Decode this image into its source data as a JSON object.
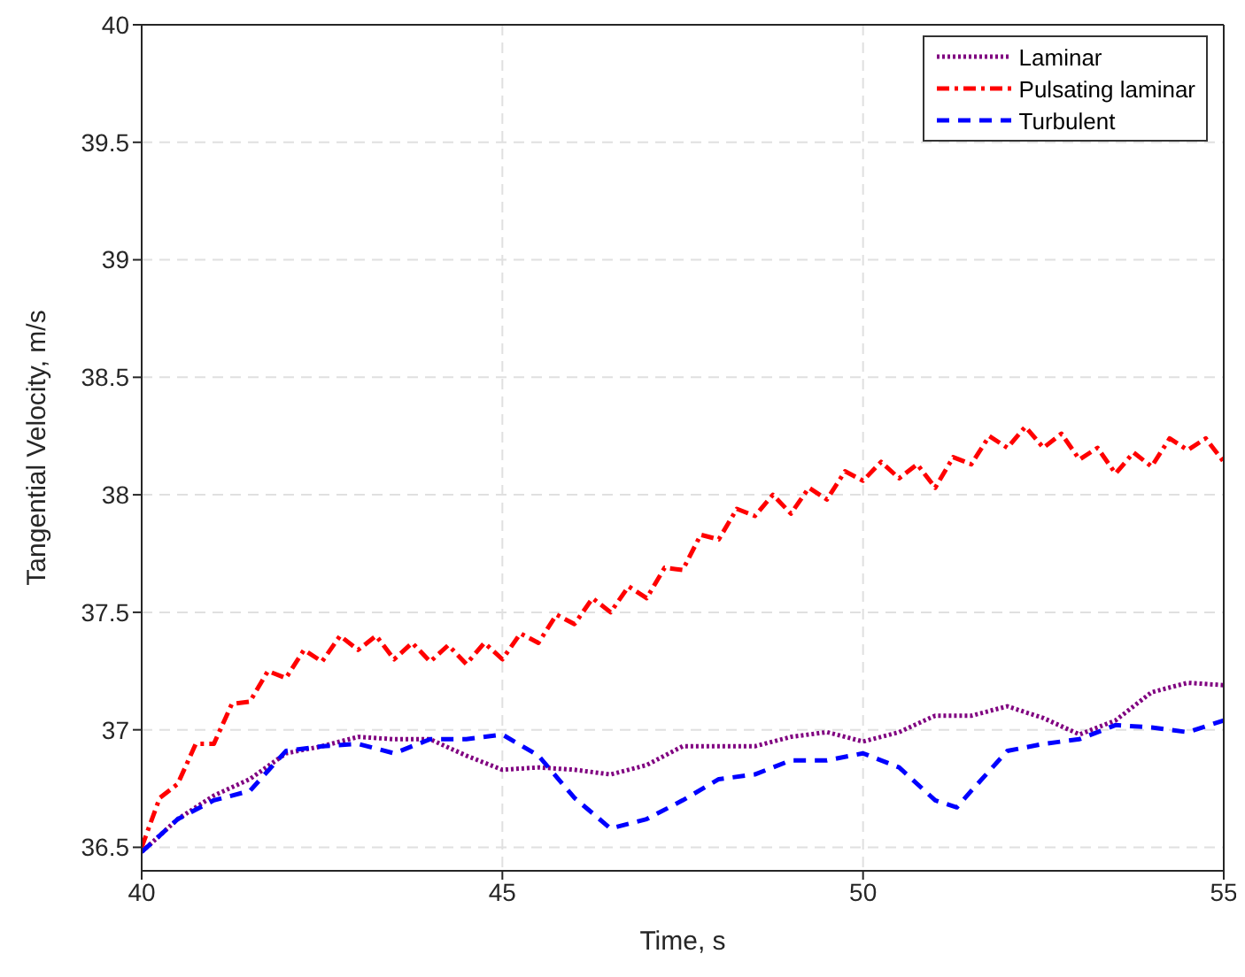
{
  "chart_data": {
    "type": "line",
    "xlabel": "Time, s",
    "ylabel": "Tangential Velocity, m/s",
    "xlim": [
      40,
      55
    ],
    "xticks": [
      40,
      45,
      50,
      55
    ],
    "ylim": [
      36.4,
      40
    ],
    "yticks": [
      36.5,
      37,
      37.5,
      38,
      38.5,
      39,
      39.5,
      40
    ],
    "grid": true,
    "legend": "top right",
    "marker": "none",
    "series": [
      {
        "name": "Laminar",
        "color": "#800080",
        "line_style": "dotted",
        "x": [
          40,
          40.5,
          41,
          41.5,
          42,
          42.5,
          43,
          43.5,
          44,
          44.5,
          45,
          45.5,
          46,
          46.5,
          47,
          47.5,
          48,
          48.5,
          49,
          49.5,
          50,
          50.5,
          51,
          51.5,
          52,
          52.5,
          53,
          53.5,
          54,
          54.5,
          55
        ],
        "values": [
          36.48,
          36.62,
          36.72,
          36.79,
          36.9,
          36.93,
          36.97,
          36.96,
          36.96,
          36.89,
          36.83,
          36.84,
          36.83,
          36.81,
          36.85,
          36.93,
          36.93,
          36.93,
          36.97,
          36.99,
          36.95,
          36.99,
          37.06,
          37.06,
          37.1,
          37.05,
          36.98,
          37.04,
          37.16,
          37.2,
          37.19
        ]
      },
      {
        "name": "Pulsating laminar",
        "color": "#ff0000",
        "line_style": "dashdot",
        "x": [
          40,
          40.25,
          40.5,
          40.75,
          41,
          41.25,
          41.5,
          41.75,
          42,
          42.25,
          42.5,
          42.75,
          43,
          43.25,
          43.5,
          43.75,
          44,
          44.25,
          44.5,
          44.75,
          45,
          45.25,
          45.5,
          45.75,
          46,
          46.25,
          46.5,
          46.75,
          47,
          47.25,
          47.5,
          47.75,
          48,
          48.25,
          48.5,
          48.75,
          49,
          49.25,
          49.5,
          49.75,
          50,
          50.25,
          50.5,
          50.75,
          51,
          51.25,
          51.5,
          51.75,
          52,
          52.25,
          52.5,
          52.75,
          53,
          53.25,
          53.5,
          53.75,
          54,
          54.25,
          54.5,
          54.75,
          55
        ],
        "values": [
          36.5,
          36.71,
          36.77,
          36.94,
          36.94,
          37.11,
          37.12,
          37.25,
          37.22,
          37.34,
          37.29,
          37.4,
          37.34,
          37.4,
          37.3,
          37.37,
          37.29,
          37.36,
          37.28,
          37.37,
          37.3,
          37.41,
          37.37,
          37.49,
          37.45,
          37.56,
          37.5,
          37.61,
          37.56,
          37.69,
          37.68,
          37.83,
          37.81,
          37.94,
          37.91,
          38,
          37.92,
          38.03,
          37.98,
          38.1,
          38.06,
          38.14,
          38.07,
          38.13,
          38.03,
          38.16,
          38.13,
          38.25,
          38.2,
          38.29,
          38.2,
          38.26,
          38.15,
          38.2,
          38.09,
          38.18,
          38.12,
          38.24,
          38.19,
          38.24,
          38.14
        ]
      },
      {
        "name": "Turbulent",
        "color": "#0000ff",
        "line_style": "dashed",
        "x": [
          40,
          40.5,
          41,
          41.5,
          42,
          42.5,
          43,
          43.5,
          44,
          44.5,
          45,
          45.5,
          46,
          46.5,
          47,
          47.5,
          48,
          48.5,
          49,
          49.5,
          50,
          50.5,
          51,
          51.3,
          51.5,
          52,
          52.5,
          53,
          53.5,
          54,
          54.5,
          55
        ],
        "values": [
          36.48,
          36.62,
          36.7,
          36.74,
          36.91,
          36.93,
          36.94,
          36.9,
          36.96,
          36.96,
          36.98,
          36.89,
          36.71,
          36.58,
          36.62,
          36.7,
          36.79,
          36.81,
          36.87,
          36.87,
          36.9,
          36.84,
          36.7,
          36.67,
          36.74,
          36.91,
          36.94,
          36.96,
          37.02,
          37.01,
          36.99,
          37.04
        ]
      }
    ]
  }
}
